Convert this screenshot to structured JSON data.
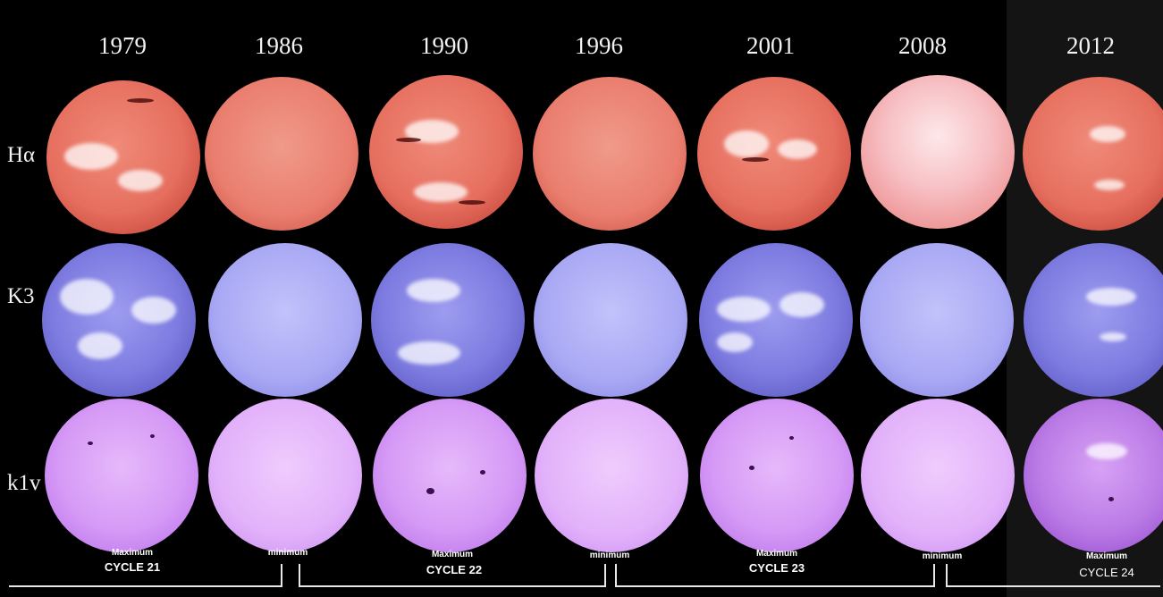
{
  "years": [
    "1979",
    "1986",
    "1990",
    "1996",
    "2001",
    "2008",
    "2012"
  ],
  "rows": {
    "ha": "Hα",
    "k3": "K3",
    "k1v": "k1v"
  },
  "captions": {
    "max1": "Maximum",
    "cyc21": "CYCLE 21",
    "min1": "minimum",
    "max2": "Maximum",
    "cyc22": "CYCLE 22",
    "min2": "minimum",
    "max3": "Maximum",
    "cyc23": "CYCLE 23",
    "min3": "minimum",
    "max4": "Maximum",
    "cyc24": "CYCLE 24"
  },
  "colors": {
    "ha": "#e66f5f",
    "k3": "#7d7be0",
    "k1v": "#d69af6",
    "background": "#000000"
  }
}
